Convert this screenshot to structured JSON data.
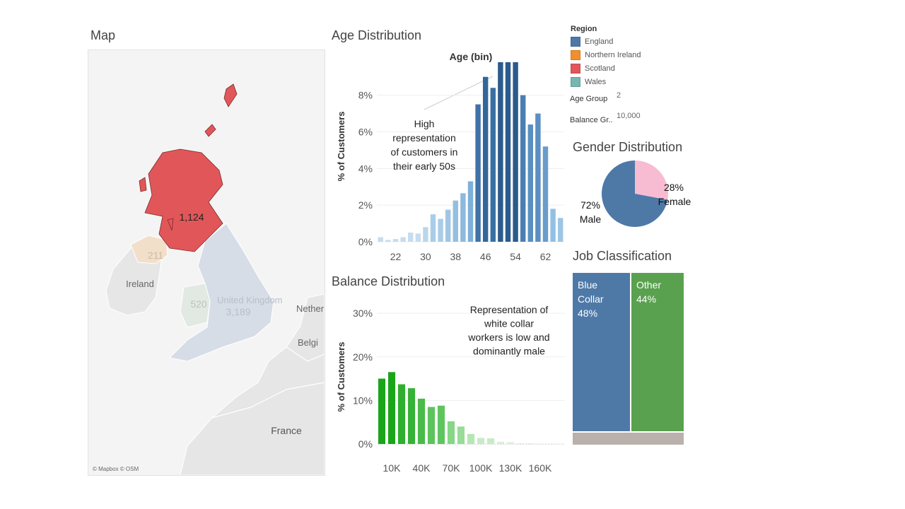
{
  "titles": {
    "map": "Map",
    "age": "Age Distribution",
    "balance": "Balance Distribution",
    "gender": "Gender Distribution",
    "job": "Job Classification"
  },
  "map": {
    "labels": {
      "scotland": "1,124",
      "ni": "211",
      "wales": "520",
      "england": "3,189",
      "ireland": "Ireland",
      "uk": "United Kingdom",
      "nether": "Nether",
      "belgium": "Belgi",
      "france": "France"
    },
    "attribution": "© Mapbox © OSM",
    "colors": {
      "scotland": "#e15759",
      "ni": "#f2dfca",
      "england": "#d7dde6",
      "wales": "#e2e9e2",
      "land": "#e6e6e6",
      "sea": "#f4f4f4"
    }
  },
  "legend": {
    "title": "Region",
    "items": [
      {
        "label": "England",
        "color": "#4e79a7"
      },
      {
        "label": "Northern Ireland",
        "color": "#f28e2b"
      },
      {
        "label": "Scotland",
        "color": "#e15759"
      },
      {
        "label": "Wales",
        "color": "#76b7b2"
      }
    ]
  },
  "filters": {
    "age_group_label": "Age Group",
    "age_group_value": "2",
    "balance_label": "Balance Gr..",
    "balance_value": "10,000"
  },
  "chart_data": [
    {
      "id": "age",
      "type": "bar",
      "title": "Age (bin)",
      "ylabel": "% of Customers",
      "xlabel": "",
      "ylim": [
        0,
        9.8
      ],
      "ytick_values": [
        0,
        2,
        4,
        6,
        8
      ],
      "ytick_labels": [
        "0%",
        "2%",
        "4%",
        "6%",
        "8%"
      ],
      "xtick_labels": [
        "22",
        "30",
        "38",
        "46",
        "54",
        "62"
      ],
      "values": [
        0.25,
        0.1,
        0.15,
        0.25,
        0.5,
        0.45,
        0.8,
        1.5,
        1.25,
        1.75,
        2.25,
        2.65,
        3.3,
        7.5,
        9.0,
        8.4,
        9.8,
        9.8,
        9.8,
        8.0,
        6.4,
        7.0,
        5.2,
        1.8,
        1.3
      ],
      "colors": [
        "#c6dcef",
        "#c6dcef",
        "#c6dcef",
        "#c6dcef",
        "#c6dcef",
        "#c6dcef",
        "#bad6ec",
        "#a9cde8",
        "#a9cde8",
        "#a0c6e3",
        "#94bfe0",
        "#8db9dd",
        "#7eb1d9",
        "#3f72a6",
        "#336699",
        "#3a6fa3",
        "#2a5b8c",
        "#2a5b8c",
        "#2a5b8c",
        "#4a7fb3",
        "#5a8fc2",
        "#5a8fc2",
        "#6a9ccb",
        "#92c0e3",
        "#9dc6e6"
      ],
      "annotation": [
        "High",
        "representation",
        "of customers in",
        "their early 50s"
      ]
    },
    {
      "id": "balance",
      "type": "bar",
      "title": "",
      "ylabel": "% of Customers",
      "xlabel": "",
      "ylim": [
        0,
        31
      ],
      "ytick_values": [
        0,
        10,
        20,
        30
      ],
      "ytick_labels": [
        "0%",
        "10%",
        "20%",
        "30%"
      ],
      "xtick_labels": [
        "10K",
        "40K",
        "70K",
        "100K",
        "130K",
        "160K"
      ],
      "values": [
        15.0,
        16.5,
        13.7,
        12.8,
        10.4,
        8.5,
        8.8,
        5.2,
        4.0,
        2.3,
        1.4,
        1.3,
        0.5,
        0.4,
        0.2,
        0.2,
        0.1,
        0.1,
        0.1
      ],
      "colors": [
        "#1aa51a",
        "#1aa51a",
        "#2eaf2e",
        "#36b236",
        "#48bb48",
        "#5cc45c",
        "#5ec55e",
        "#86d686",
        "#97dc97",
        "#b5e6b5",
        "#c6ecc6",
        "#c6ecc6",
        "#d5f1d5",
        "#d8f2d8",
        "#dff4df",
        "#dff4df",
        "#e4f6e4",
        "#e4f6e4",
        "#e4f6e4"
      ],
      "annotation": [
        "Representation of",
        "white collar",
        "workers is low and",
        "dominantly male"
      ]
    },
    {
      "id": "gender",
      "type": "pie",
      "title": "",
      "slices": [
        {
          "name": "Male",
          "value": 72,
          "label": "72%",
          "color": "#4e79a7"
        },
        {
          "name": "Female",
          "value": 28,
          "label": "28%",
          "color": "#f7bcd2"
        }
      ]
    },
    {
      "id": "job",
      "type": "treemap",
      "title": "",
      "items": [
        {
          "name": "Blue Collar",
          "label_lines": [
            "Blue",
            "Collar"
          ],
          "pct_label": "48%",
          "value": 48,
          "color": "#4e79a7"
        },
        {
          "name": "Other",
          "label_lines": [
            "Other"
          ],
          "pct_label": "44%",
          "value": 44,
          "color": "#59a14f"
        },
        {
          "name": "",
          "label_lines": [],
          "pct_label": "",
          "value": 8,
          "color": "#bab0ac"
        }
      ]
    }
  ]
}
